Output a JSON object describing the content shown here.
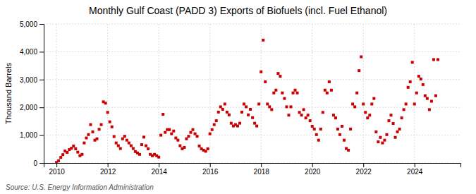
{
  "chart_data": {
    "type": "scatter",
    "title": "Monthly Gulf Coast (PADD 3) Exports of Biofuels (incl. Fuel Ethanol)",
    "ylabel": "Thousand Barrels",
    "source": "Source: U.S. Energy Information Administration",
    "color": "#cc0000",
    "marker": "square",
    "grid": true,
    "xlim": [
      2009.5,
      2025.8
    ],
    "xticks": [
      2010,
      2012,
      2014,
      2016,
      2018,
      2020,
      2022,
      2024
    ],
    "ylim": [
      0,
      5000
    ],
    "yticks": [
      0,
      {
        "value": 1000,
        "label": "1,000"
      },
      {
        "value": 2000,
        "label": "2,000"
      },
      {
        "value": 3000,
        "label": "3,000"
      },
      {
        "value": 4000,
        "label": "4,000"
      },
      {
        "value": 5000,
        "label": "5,000"
      }
    ],
    "x": [
      2010.0,
      2010.083,
      2010.167,
      2010.25,
      2010.333,
      2010.417,
      2010.5,
      2010.583,
      2010.667,
      2010.75,
      2010.833,
      2010.917,
      2011.0,
      2011.083,
      2011.167,
      2011.25,
      2011.333,
      2011.417,
      2011.5,
      2011.583,
      2011.667,
      2011.75,
      2011.833,
      2011.917,
      2012.0,
      2012.083,
      2012.167,
      2012.25,
      2012.333,
      2012.417,
      2012.5,
      2012.583,
      2012.667,
      2012.75,
      2012.833,
      2012.917,
      2013.0,
      2013.083,
      2013.167,
      2013.25,
      2013.333,
      2013.417,
      2013.5,
      2013.583,
      2013.667,
      2013.75,
      2013.833,
      2013.917,
      2014.0,
      2014.083,
      2014.167,
      2014.25,
      2014.333,
      2014.417,
      2014.5,
      2014.583,
      2014.667,
      2014.75,
      2014.833,
      2014.917,
      2015.0,
      2015.083,
      2015.167,
      2015.25,
      2015.333,
      2015.417,
      2015.5,
      2015.583,
      2015.667,
      2015.75,
      2015.833,
      2015.917,
      2016.0,
      2016.083,
      2016.167,
      2016.25,
      2016.333,
      2016.417,
      2016.5,
      2016.583,
      2016.667,
      2016.75,
      2016.833,
      2016.917,
      2017.0,
      2017.083,
      2017.167,
      2017.25,
      2017.333,
      2017.417,
      2017.5,
      2017.583,
      2017.667,
      2017.75,
      2017.833,
      2017.917,
      2018.0,
      2018.083,
      2018.167,
      2018.25,
      2018.333,
      2018.417,
      2018.5,
      2018.583,
      2018.667,
      2018.75,
      2018.833,
      2018.917,
      2019.0,
      2019.083,
      2019.167,
      2019.25,
      2019.333,
      2019.417,
      2019.5,
      2019.583,
      2019.667,
      2019.75,
      2019.833,
      2019.917,
      2020.0,
      2020.083,
      2020.167,
      2020.25,
      2020.333,
      2020.417,
      2020.5,
      2020.583,
      2020.667,
      2020.75,
      2020.833,
      2020.917,
      2021.0,
      2021.083,
      2021.167,
      2021.25,
      2021.333,
      2021.417,
      2021.5,
      2021.583,
      2021.667,
      2021.75,
      2021.833,
      2021.917,
      2022.0,
      2022.083,
      2022.167,
      2022.25,
      2022.333,
      2022.417,
      2022.5,
      2022.583,
      2022.667,
      2022.75,
      2022.833,
      2022.917,
      2023.0,
      2023.083,
      2023.167,
      2023.25,
      2023.333,
      2023.417,
      2023.5,
      2023.583,
      2023.667,
      2023.75,
      2023.833,
      2023.917,
      2024.0,
      2024.083,
      2024.167,
      2024.25,
      2024.333,
      2024.417,
      2024.5,
      2024.583,
      2024.667,
      2024.75,
      2024.833,
      2024.917
    ],
    "values": [
      20,
      80,
      200,
      300,
      430,
      380,
      480,
      530,
      610,
      510,
      390,
      260,
      310,
      720,
      900,
      1020,
      1380,
      1120,
      820,
      870,
      1210,
      1380,
      2200,
      2150,
      1820,
      1480,
      1300,
      950,
      720,
      620,
      520,
      870,
      960,
      820,
      720,
      620,
      520,
      410,
      360,
      310,
      660,
      930,
      620,
      510,
      310,
      260,
      310,
      260,
      210,
      1000,
      1750,
      1100,
      1200,
      1200,
      1050,
      1150,
      900,
      820,
      620,
      510,
      560,
      870,
      960,
      1100,
      1200,
      1050,
      960,
      610,
      510,
      460,
      420,
      510,
      1050,
      1200,
      1380,
      1520,
      1830,
      2020,
      1930,
      2120,
      1830,
      1730,
      1430,
      1330,
      1380,
      1330,
      1430,
      1830,
      2120,
      2020,
      1730,
      1930,
      1630,
      1430,
      1330,
      2120,
      3280,
      4420,
      2920,
      2120,
      2020,
      1920,
      2520,
      2620,
      3220,
      3120,
      2520,
      2320,
      2020,
      1720,
      2020,
      2520,
      2620,
      2520,
      1820,
      1720,
      1920,
      1620,
      1720,
      1520,
      1320,
      1220,
      1020,
      820,
      1220,
      1820,
      2620,
      2520,
      2920,
      2620,
      1720,
      1620,
      1220,
      1020,
      1320,
      820,
      520,
      460,
      1220,
      2120,
      2020,
      2520,
      3320,
      3820,
      2120,
      1820,
      1620,
      1720,
      2120,
      2320,
      1120,
      760,
      920,
      720,
      820,
      1020,
      1520,
      1720,
      1420,
      920,
      1120,
      1220,
      1620,
      1920,
      2120,
      2720,
      2920,
      3620,
      2120,
      2520,
      3120,
      3020,
      2820,
      2420,
      2320,
      1920,
      2220,
      3720,
      2420,
      3720
    ]
  }
}
